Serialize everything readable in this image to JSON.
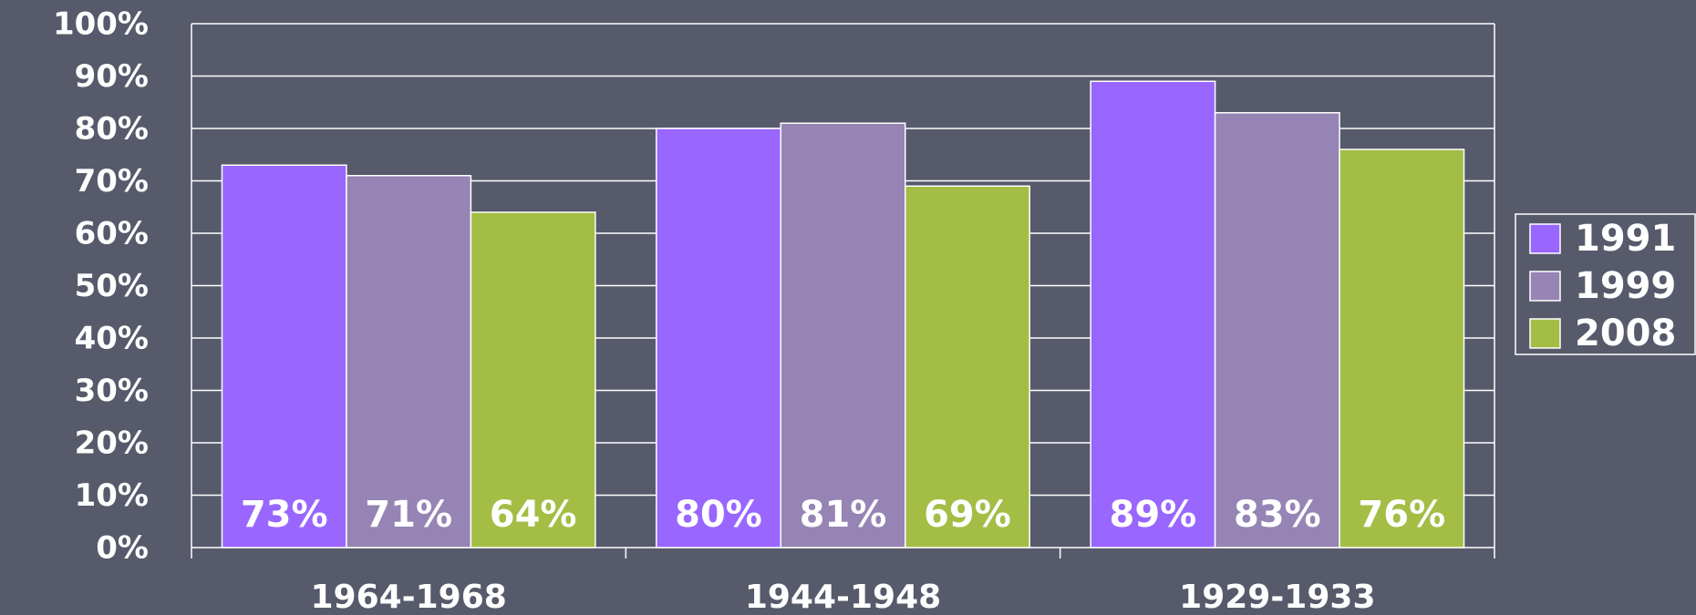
{
  "chart_data": {
    "type": "bar",
    "categories": [
      "1964-1968",
      "1944-1948",
      "1929-1933"
    ],
    "series": [
      {
        "name": "1991",
        "color": "#9966ff",
        "values": [
          73,
          80,
          89
        ],
        "value_labels": [
          "73%",
          "80%",
          "89%"
        ]
      },
      {
        "name": "1999",
        "color": "#9584b4",
        "values": [
          71,
          81,
          83
        ],
        "value_labels": [
          "71%",
          "81%",
          "83%"
        ]
      },
      {
        "name": "2008",
        "color": "#a3bd45",
        "values": [
          64,
          69,
          76
        ],
        "value_labels": [
          "64%",
          "69%",
          "76%"
        ]
      }
    ],
    "ylim": [
      0,
      100
    ],
    "yticks": [
      {
        "value": 0,
        "label": "0%"
      },
      {
        "value": 10,
        "label": "10%"
      },
      {
        "value": 20,
        "label": "20%"
      },
      {
        "value": 30,
        "label": "30%"
      },
      {
        "value": 40,
        "label": "40%"
      },
      {
        "value": 50,
        "label": "50%"
      },
      {
        "value": 60,
        "label": "60%"
      },
      {
        "value": 70,
        "label": "70%"
      },
      {
        "value": 80,
        "label": "80%"
      },
      {
        "value": 90,
        "label": "90%"
      },
      {
        "value": 100,
        "label": "100%"
      }
    ],
    "grid": true,
    "legend": "right"
  }
}
